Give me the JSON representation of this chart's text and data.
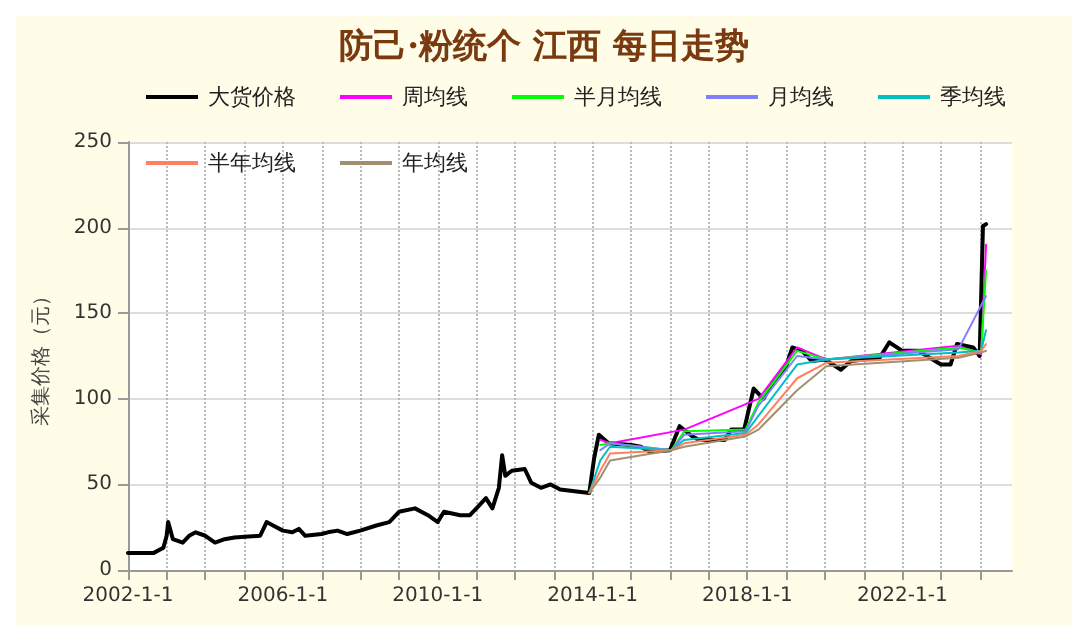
{
  "chart_data": {
    "type": "line",
    "title": "防己·粉统个 江西 每日走势",
    "ylabel": "采集价格（元）",
    "ylim": [
      0,
      250
    ],
    "yticks": [
      0,
      50,
      100,
      150,
      200,
      250
    ],
    "xlim": [
      "2002-01-01",
      "2024-11-01"
    ],
    "xticks": [
      {
        "value": "2002-01-01",
        "label": "2002-1-1"
      },
      {
        "value": "2003-01-01",
        "label": null
      },
      {
        "value": "2004-01-01",
        "label": null
      },
      {
        "value": "2005-01-01",
        "label": null
      },
      {
        "value": "2006-01-01",
        "label": "2006-1-1"
      },
      {
        "value": "2007-01-01",
        "label": null
      },
      {
        "value": "2008-01-01",
        "label": null
      },
      {
        "value": "2009-01-01",
        "label": null
      },
      {
        "value": "2010-01-01",
        "label": "2010-1-1"
      },
      {
        "value": "2011-01-01",
        "label": null
      },
      {
        "value": "2012-01-01",
        "label": null
      },
      {
        "value": "2013-01-01",
        "label": null
      },
      {
        "value": "2014-01-01",
        "label": "2014-1-1"
      },
      {
        "value": "2015-01-01",
        "label": null
      },
      {
        "value": "2016-01-01",
        "label": null
      },
      {
        "value": "2017-01-01",
        "label": null
      },
      {
        "value": "2018-01-01",
        "label": "2018-1-1"
      },
      {
        "value": "2019-01-01",
        "label": null
      },
      {
        "value": "2020-01-01",
        "label": null
      },
      {
        "value": "2021-01-01",
        "label": null
      },
      {
        "value": "2022-01-01",
        "label": "2022-1-1"
      },
      {
        "value": "2023-01-01",
        "label": null
      },
      {
        "value": "2024-01-01",
        "label": null
      }
    ],
    "grid": true,
    "legend": "top",
    "marker": "none",
    "line_style": "solid",
    "series": [
      {
        "name": "大货价格",
        "color": "#000000",
        "x": [
          "2002-01-01",
          "2002-09-01",
          "2002-12-01",
          "2003-01-01",
          "2003-01-15",
          "2003-03-01",
          "2003-06-01",
          "2003-08-01",
          "2003-10-01",
          "2004-01-01",
          "2004-04-01",
          "2004-07-01",
          "2004-10-01",
          "2005-06-01",
          "2005-08-01",
          "2005-10-01",
          "2006-01-01",
          "2006-04-01",
          "2006-06-01",
          "2006-08-01",
          "2007-01-01",
          "2007-03-01",
          "2007-06-01",
          "2007-09-01",
          "2008-01-01",
          "2008-06-01",
          "2008-10-01",
          "2009-01-01",
          "2009-06-01",
          "2009-10-01",
          "2010-01-01",
          "2010-03-01",
          "2010-08-01",
          "2010-11-01",
          "2011-02-01",
          "2011-04-01",
          "2011-06-01",
          "2011-08-01",
          "2011-09-01",
          "2011-10-01",
          "2011-12-01",
          "2012-04-01",
          "2012-06-01",
          "2012-09-01",
          "2012-12-01",
          "2013-03-01",
          "2013-12-01",
          "2014-01-15",
          "2014-03-01",
          "2014-06-01",
          "2015-01-01",
          "2015-04-01",
          "2015-07-01",
          "2016-01-01",
          "2016-04-01",
          "2016-08-01",
          "2016-10-01",
          "2017-06-01",
          "2017-08-01",
          "2017-12-01",
          "2018-03-01",
          "2018-06-01",
          "2018-09-01",
          "2019-01-01",
          "2019-03-01",
          "2019-06-01",
          "2019-09-01",
          "2020-01-01",
          "2020-06-01",
          "2020-09-01",
          "2021-06-01",
          "2021-09-01",
          "2022-01-01",
          "2022-06-01",
          "2023-01-01",
          "2023-04-01",
          "2023-06-01",
          "2023-11-01",
          "2024-01-01",
          "2024-02-01",
          "2024-03-01"
        ],
        "values": [
          10,
          10,
          13,
          20,
          28,
          18,
          16,
          20,
          22,
          20,
          16,
          18,
          19,
          20,
          28,
          26,
          23,
          22,
          24,
          20,
          21,
          22,
          23,
          21,
          23,
          26,
          28,
          34,
          36,
          32,
          28,
          34,
          32,
          32,
          38,
          42,
          36,
          48,
          67,
          55,
          58,
          59,
          51,
          48,
          50,
          47,
          45,
          65,
          79,
          74,
          73,
          72,
          69,
          70,
          84,
          78,
          76,
          76,
          82,
          82,
          106,
          100,
          110,
          119,
          130,
          128,
          122,
          123,
          117,
          122,
          124,
          133,
          128,
          128,
          120,
          120,
          132,
          130,
          125,
          201,
          202
        ]
      },
      {
        "name": "周均线",
        "color": "#ff00ff",
        "x": [
          "2014-03-15",
          "2014-06-15",
          "2016-05-15",
          "2018-04-15",
          "2019-04-15",
          "2020-01-15",
          "2023-06-15",
          "2024-01-15",
          "2024-03-01"
        ],
        "values": [
          76,
          74,
          82,
          100,
          130,
          123,
          131,
          126,
          190
        ]
      },
      {
        "name": "半月均线",
        "color": "#00ff00",
        "x": [
          "2014-03-15",
          "2014-06-15",
          "2016-01-15",
          "2016-05-15",
          "2017-12-15",
          "2018-04-15",
          "2019-04-15",
          "2020-01-15",
          "2023-06-15",
          "2024-01-15",
          "2024-03-01"
        ],
        "values": [
          73,
          74,
          70,
          81,
          82,
          98,
          128,
          123,
          130,
          127,
          175
        ]
      },
      {
        "name": "月均线",
        "color": "#8080ff",
        "x": [
          "2014-03-15",
          "2014-06-15",
          "2016-01-15",
          "2016-05-15",
          "2017-12-15",
          "2018-04-15",
          "2019-04-15",
          "2020-01-15",
          "2023-06-15",
          "2024-03-01"
        ],
        "values": [
          70,
          74,
          70,
          79,
          81,
          96,
          125,
          123,
          129,
          160
        ]
      },
      {
        "name": "季均线",
        "color": "#00c0c0",
        "x": [
          "2013-12-01",
          "2014-03-15",
          "2014-06-15",
          "2016-01-15",
          "2016-05-15",
          "2017-12-15",
          "2018-04-15",
          "2019-04-15",
          "2020-01-15",
          "2023-06-15",
          "2024-01-15",
          "2024-03-01"
        ],
        "values": [
          45,
          64,
          72,
          70,
          76,
          80,
          90,
          120,
          123,
          127,
          128,
          140
        ]
      },
      {
        "name": "半年均线",
        "color": "#ff8060",
        "x": [
          "2013-12-01",
          "2014-03-15",
          "2014-06-15",
          "2016-01-15",
          "2016-05-15",
          "2017-12-15",
          "2018-04-15",
          "2019-04-15",
          "2020-01-15",
          "2023-06-15",
          "2024-01-15",
          "2024-03-01"
        ],
        "values": [
          45,
          58,
          68,
          70,
          74,
          79,
          85,
          112,
          121,
          125,
          128,
          132
        ]
      },
      {
        "name": "年均线",
        "color": "#a09070",
        "x": [
          "2013-12-01",
          "2014-03-15",
          "2014-06-15",
          "2016-01-15",
          "2016-05-15",
          "2017-12-15",
          "2018-04-15",
          "2019-04-15",
          "2020-01-15",
          "2023-06-15",
          "2024-01-15",
          "2024-03-01"
        ],
        "values": [
          45,
          54,
          64,
          70,
          72,
          78,
          82,
          105,
          119,
          124,
          127,
          128
        ]
      }
    ]
  }
}
